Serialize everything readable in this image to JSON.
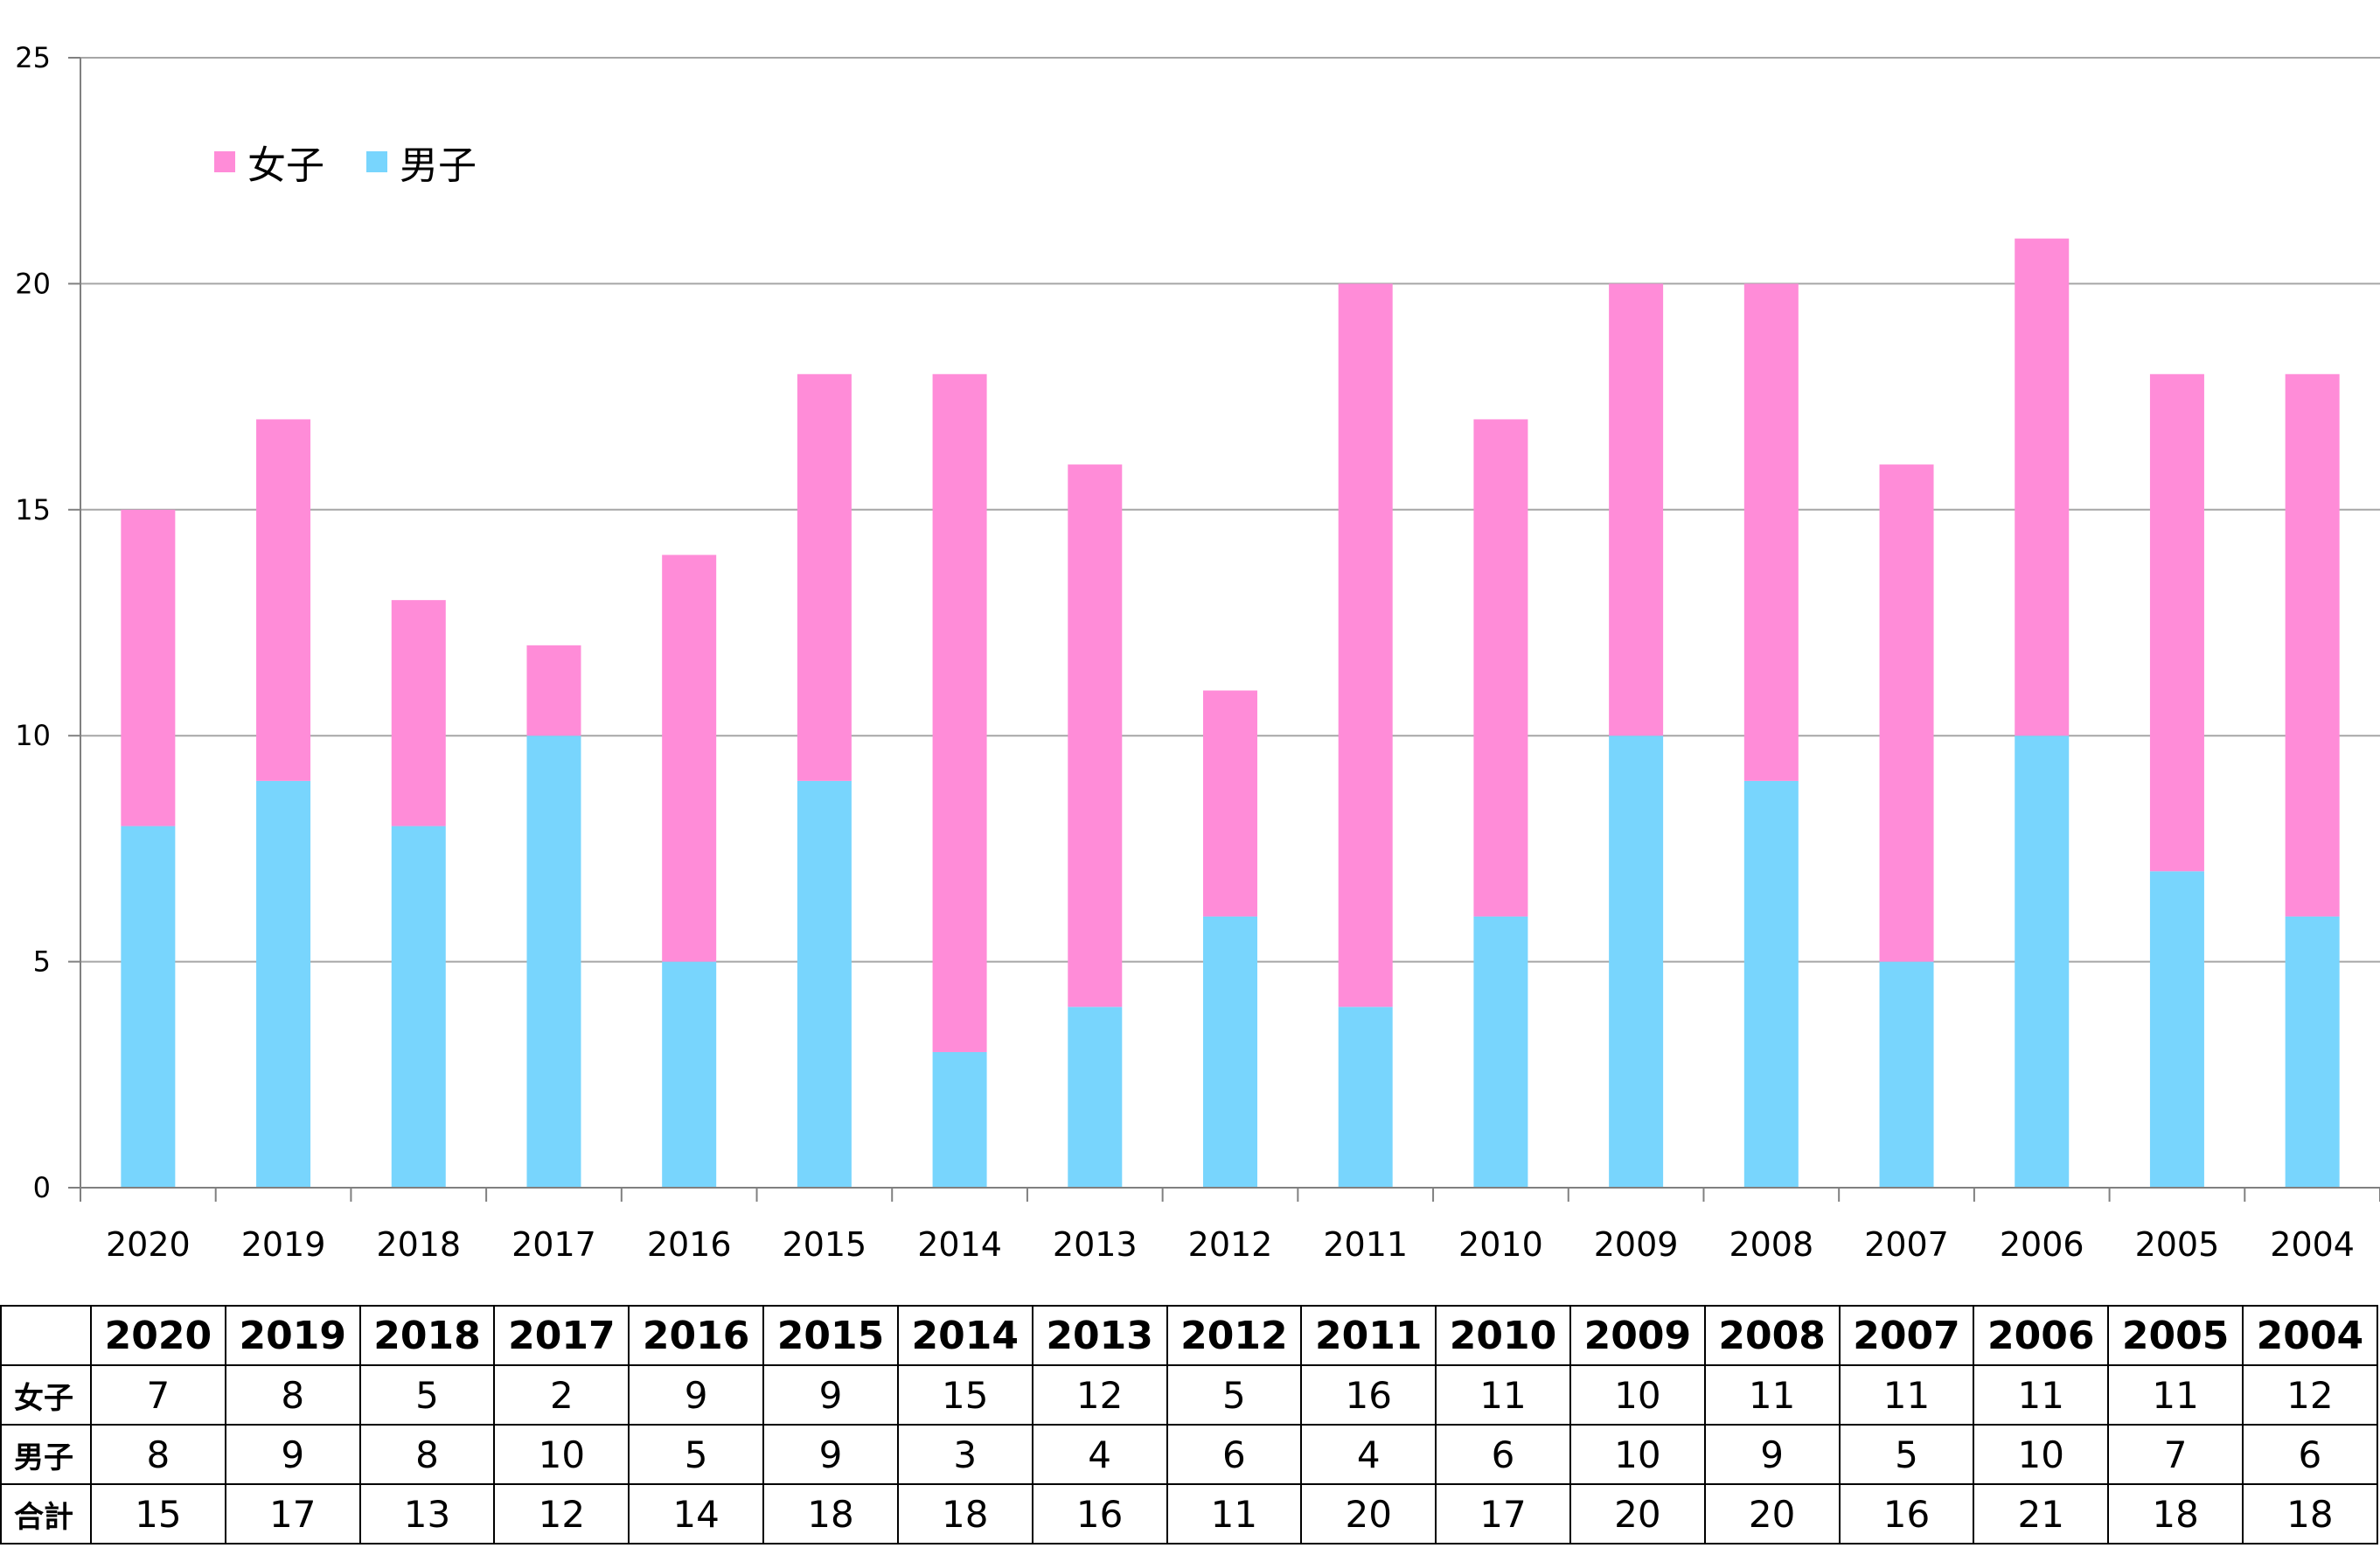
{
  "chart_data": {
    "type": "bar",
    "stacked": true,
    "categories": [
      "2020",
      "2019",
      "2018",
      "2017",
      "2016",
      "2015",
      "2014",
      "2013",
      "2012",
      "2011",
      "2010",
      "2009",
      "2008",
      "2007",
      "2006",
      "2005",
      "2004"
    ],
    "series": [
      {
        "name": "男子",
        "color": "#78D5FD",
        "values": [
          8,
          9,
          8,
          10,
          5,
          9,
          3,
          4,
          6,
          4,
          6,
          10,
          9,
          5,
          10,
          7,
          6
        ]
      },
      {
        "name": "女子",
        "color": "#FF8CD8",
        "values": [
          7,
          8,
          5,
          2,
          9,
          9,
          15,
          12,
          5,
          16,
          11,
          10,
          11,
          11,
          11,
          11,
          12
        ]
      }
    ],
    "legend": {
      "position": "top-left",
      "items": [
        {
          "label": "女子",
          "color": "#FF8CD8"
        },
        {
          "label": "男子",
          "color": "#78D5FD"
        }
      ]
    },
    "ylim": [
      0,
      25
    ],
    "yticks": [
      0,
      5,
      10,
      15,
      20,
      25
    ],
    "grid": true,
    "xlabel": "",
    "ylabel": ""
  },
  "table": {
    "header": [
      "2020",
      "2019",
      "2018",
      "2017",
      "2016",
      "2015",
      "2014",
      "2013",
      "2012",
      "2011",
      "2010",
      "2009",
      "2008",
      "2007",
      "2006",
      "2005",
      "2004"
    ],
    "rows": [
      {
        "label": "女子",
        "values": [
          "7",
          "8",
          "5",
          "2",
          "9",
          "9",
          "15",
          "12",
          "5",
          "16",
          "11",
          "10",
          "11",
          "11",
          "11",
          "11",
          "12"
        ]
      },
      {
        "label": "男子",
        "values": [
          "8",
          "9",
          "8",
          "10",
          "5",
          "9",
          "3",
          "4",
          "6",
          "4",
          "6",
          "10",
          "9",
          "5",
          "10",
          "7",
          "6"
        ]
      },
      {
        "label": "合計",
        "values": [
          "15",
          "17",
          "13",
          "12",
          "14",
          "18",
          "18",
          "16",
          "11",
          "20",
          "17",
          "20",
          "20",
          "16",
          "21",
          "18",
          "18"
        ]
      }
    ]
  }
}
